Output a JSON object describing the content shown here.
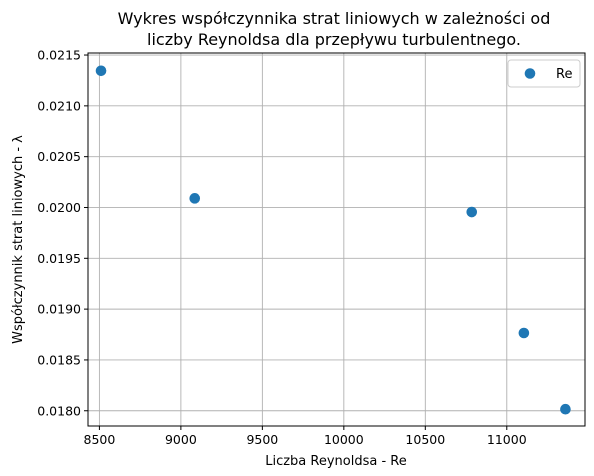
{
  "chart_data": {
    "type": "scatter",
    "title_line1": "Wykres współczynnika strat liniowych w zależności od",
    "title_line2": "liczby Reynoldsa dla przepływu turbulentnego.",
    "xlabel": "Liczba Reynoldsa - Re",
    "ylabel": "Współczynnik strat liniowych - λ",
    "xlim": [
      8430,
      11480
    ],
    "ylim": [
      0.01785,
      0.02152
    ],
    "x_ticks": [
      8500,
      9000,
      9500,
      10000,
      10500,
      11000
    ],
    "x_tick_labels": [
      "8500",
      "9000",
      "9500",
      "10000",
      "10500",
      "11000"
    ],
    "y_ticks": [
      0.018,
      0.0185,
      0.019,
      0.0195,
      0.02,
      0.0205,
      0.021,
      0.0215
    ],
    "y_tick_labels": [
      "0.0180",
      "0.0185",
      "0.0190",
      "0.0195",
      "0.0200",
      "0.0205",
      "0.0210",
      "0.0215"
    ],
    "grid": true,
    "legend_position": "top-right",
    "series": [
      {
        "name": "Re",
        "color": "#1f77b4",
        "x": [
          8510,
          9085,
          10785,
          11105,
          11360
        ],
        "y": [
          0.021345,
          0.02009,
          0.019955,
          0.018765,
          0.018015
        ]
      }
    ]
  }
}
